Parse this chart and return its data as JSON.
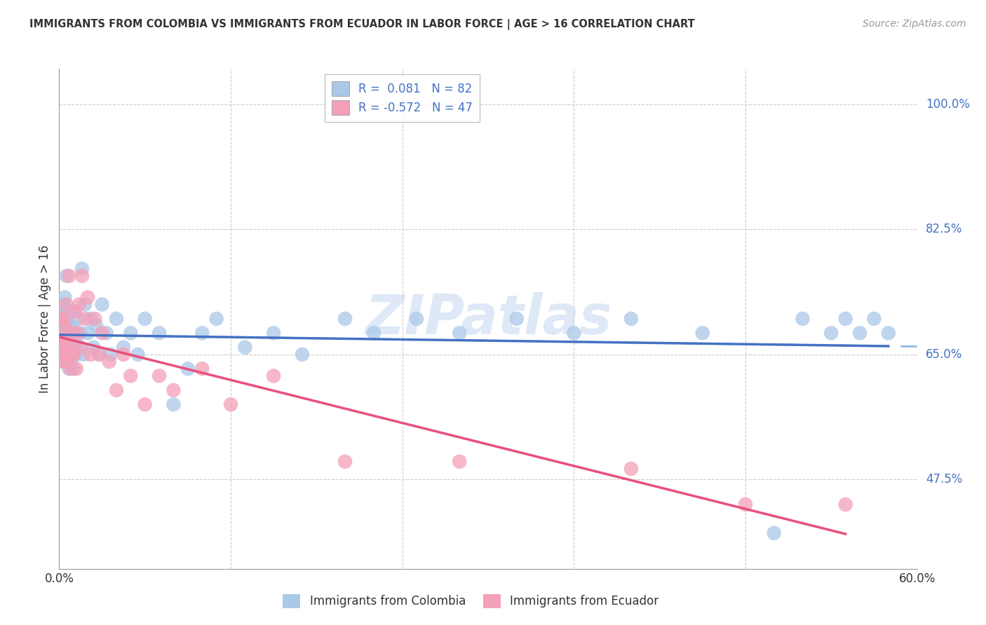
{
  "title": "IMMIGRANTS FROM COLOMBIA VS IMMIGRANTS FROM ECUADOR IN LABOR FORCE | AGE > 16 CORRELATION CHART",
  "source": "Source: ZipAtlas.com",
  "ylabel": "In Labor Force | Age > 16",
  "xlim": [
    0.0,
    0.6
  ],
  "ylim": [
    0.35,
    1.05
  ],
  "yticks": [
    0.475,
    0.65,
    0.825,
    1.0
  ],
  "ytick_labels": [
    "47.5%",
    "65.0%",
    "82.5%",
    "100.0%"
  ],
  "xticks": [
    0.0,
    0.12,
    0.24,
    0.36,
    0.48,
    0.6
  ],
  "xtick_labels": [
    "0.0%",
    "",
    "",
    "",
    "",
    "60.0%"
  ],
  "color_colombia": "#aac8e8",
  "color_ecuador": "#f4a0b8",
  "color_line_colombia_solid": "#4472c4",
  "color_line_colombia_dashed": "#90b8e0",
  "color_line_ecuador": "#e8507a",
  "R_colombia": 0.081,
  "N_colombia": 82,
  "R_ecuador": -0.572,
  "N_ecuador": 47,
  "watermark": "ZIPatlas",
  "legend_label_colombia": "Immigrants from Colombia",
  "legend_label_ecuador": "Immigrants from Ecuador",
  "colombia_x": [
    0.001,
    0.001,
    0.002,
    0.002,
    0.002,
    0.002,
    0.003,
    0.003,
    0.003,
    0.003,
    0.003,
    0.004,
    0.004,
    0.004,
    0.004,
    0.004,
    0.005,
    0.005,
    0.005,
    0.005,
    0.005,
    0.006,
    0.006,
    0.006,
    0.006,
    0.007,
    0.007,
    0.007,
    0.007,
    0.008,
    0.008,
    0.008,
    0.009,
    0.009,
    0.009,
    0.01,
    0.01,
    0.011,
    0.011,
    0.012,
    0.013,
    0.014,
    0.015,
    0.016,
    0.017,
    0.018,
    0.02,
    0.022,
    0.024,
    0.026,
    0.028,
    0.03,
    0.033,
    0.036,
    0.04,
    0.045,
    0.05,
    0.055,
    0.06,
    0.07,
    0.08,
    0.09,
    0.1,
    0.11,
    0.13,
    0.15,
    0.17,
    0.2,
    0.22,
    0.25,
    0.28,
    0.32,
    0.36,
    0.4,
    0.45,
    0.5,
    0.52,
    0.54,
    0.55,
    0.56,
    0.57,
    0.58
  ],
  "colombia_y": [
    0.66,
    0.68,
    0.65,
    0.67,
    0.69,
    0.7,
    0.64,
    0.66,
    0.68,
    0.7,
    0.72,
    0.65,
    0.67,
    0.69,
    0.71,
    0.73,
    0.64,
    0.66,
    0.68,
    0.7,
    0.76,
    0.65,
    0.67,
    0.69,
    0.71,
    0.63,
    0.65,
    0.67,
    0.69,
    0.64,
    0.66,
    0.68,
    0.65,
    0.67,
    0.69,
    0.63,
    0.71,
    0.66,
    0.68,
    0.65,
    0.7,
    0.66,
    0.68,
    0.77,
    0.65,
    0.72,
    0.68,
    0.7,
    0.66,
    0.69,
    0.65,
    0.72,
    0.68,
    0.65,
    0.7,
    0.66,
    0.68,
    0.65,
    0.7,
    0.68,
    0.58,
    0.63,
    0.68,
    0.7,
    0.66,
    0.68,
    0.65,
    0.7,
    0.68,
    0.7,
    0.68,
    0.7,
    0.68,
    0.7,
    0.68,
    0.4,
    0.7,
    0.68,
    0.7,
    0.68,
    0.7,
    0.68
  ],
  "ecuador_x": [
    0.001,
    0.002,
    0.002,
    0.003,
    0.003,
    0.003,
    0.004,
    0.004,
    0.005,
    0.005,
    0.005,
    0.006,
    0.006,
    0.007,
    0.007,
    0.008,
    0.008,
    0.009,
    0.009,
    0.01,
    0.011,
    0.012,
    0.013,
    0.014,
    0.015,
    0.016,
    0.018,
    0.02,
    0.022,
    0.025,
    0.028,
    0.03,
    0.035,
    0.04,
    0.045,
    0.05,
    0.06,
    0.07,
    0.08,
    0.1,
    0.12,
    0.15,
    0.2,
    0.28,
    0.4,
    0.48,
    0.55
  ],
  "ecuador_y": [
    0.65,
    0.67,
    0.7,
    0.64,
    0.67,
    0.7,
    0.66,
    0.69,
    0.64,
    0.67,
    0.72,
    0.65,
    0.68,
    0.65,
    0.76,
    0.63,
    0.66,
    0.65,
    0.68,
    0.65,
    0.71,
    0.63,
    0.68,
    0.72,
    0.66,
    0.76,
    0.7,
    0.73,
    0.65,
    0.7,
    0.65,
    0.68,
    0.64,
    0.6,
    0.65,
    0.62,
    0.58,
    0.62,
    0.6,
    0.63,
    0.58,
    0.62,
    0.5,
    0.5,
    0.49,
    0.44,
    0.44
  ]
}
